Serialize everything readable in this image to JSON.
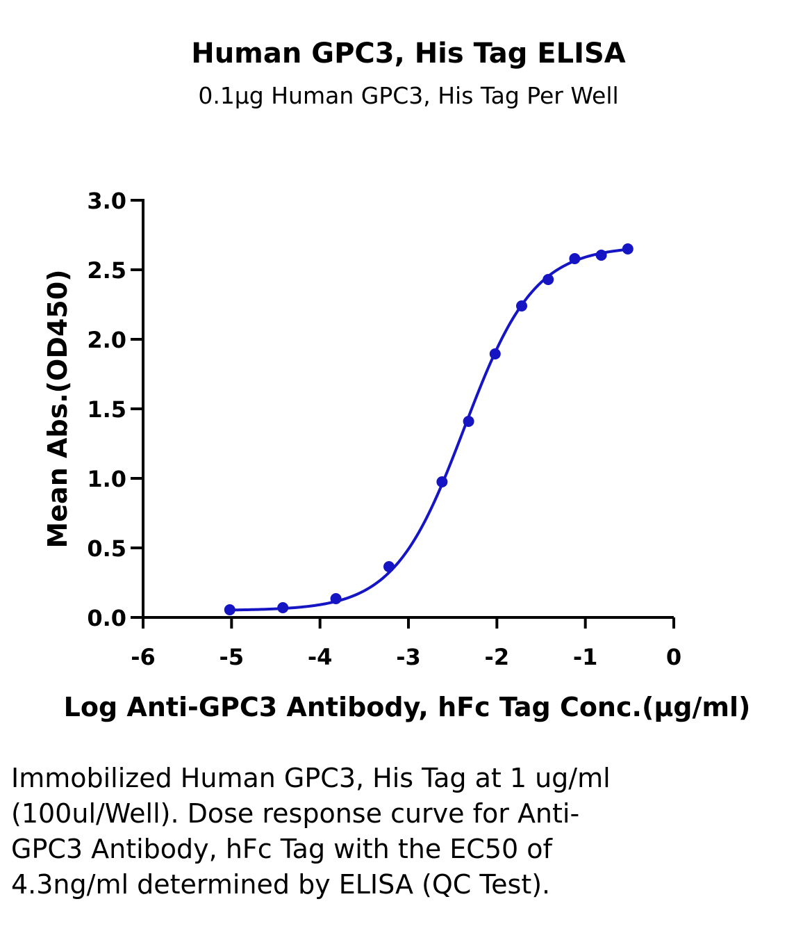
{
  "chart_data": {
    "type": "scatter",
    "title": "Human GPC3, His Tag ELISA",
    "subtitle": "0.1μg Human GPC3, His Tag Per Well",
    "xlabel": "Log Anti-GPC3 Antibody, hFc Tag Conc.(μg/ml)",
    "ylabel": "Mean Abs.(OD450)",
    "xlim": [
      -6,
      0
    ],
    "ylim": [
      0,
      3.0
    ],
    "x_ticks": [
      -6,
      -5,
      -4,
      -3,
      -2,
      -1,
      0
    ],
    "x_tick_labels": [
      "-6",
      "-5",
      "-4",
      "-3",
      "-2",
      "-1",
      "0"
    ],
    "y_ticks": [
      0,
      0.5,
      1.0,
      1.5,
      2.0,
      2.5,
      3.0
    ],
    "y_tick_labels": [
      "0.0",
      "0.5",
      "1.0",
      "1.5",
      "2.0",
      "2.5",
      "3.0"
    ],
    "grid": false,
    "color": "#1515c4",
    "series": [
      {
        "x": [
          -5.02,
          -4.42,
          -3.82,
          -3.22,
          -2.62,
          -2.32,
          -2.02,
          -1.72,
          -1.42,
          -1.12,
          -0.82,
          -0.52
        ],
        "y": [
          0.055,
          0.07,
          0.135,
          0.365,
          0.975,
          1.41,
          1.895,
          2.24,
          2.43,
          2.58,
          2.605,
          2.65
        ]
      }
    ],
    "fit_curve": {
      "model": "4PL",
      "bottom": 0.05,
      "top": 2.67,
      "logEC50": -2.37,
      "hill": 1.1
    }
  },
  "caption": "Immobilized Human GPC3, His Tag at 1 ug/ml (100ul/Well). Dose response curve for Anti-GPC3 Antibody, hFc Tag with the EC50 of 4.3ng/ml determined by ELISA (QC Test)."
}
